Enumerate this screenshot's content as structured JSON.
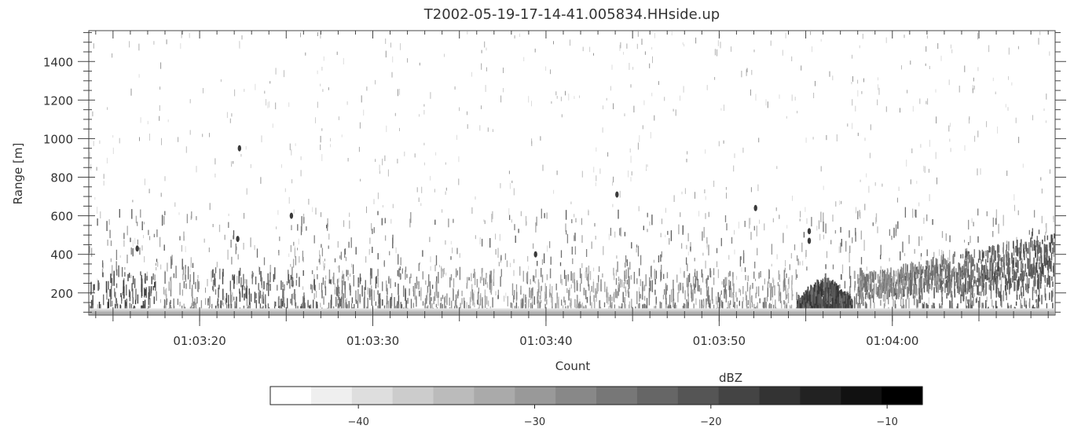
{
  "chart_data": {
    "type": "heatmap",
    "title": "T2002-05-19-17-14-41.005834.HHside.up",
    "xlabel": "Count",
    "ylabel": "Range [m]",
    "x_ticks": [
      "01:03:20",
      "01:03:30",
      "01:03:40",
      "01:03:50",
      "01:04:00"
    ],
    "x_tick_seconds": [
      20,
      30,
      40,
      50,
      60
    ],
    "xlim_seconds": [
      13.6,
      69.4
    ],
    "y_ticks": [
      200,
      400,
      600,
      800,
      1000,
      1200,
      1400
    ],
    "ylim": [
      85,
      1560
    ],
    "colorbar": {
      "label": "dBZ",
      "range": [
        -45,
        -8
      ],
      "ticks": [
        -40,
        -30,
        -20,
        -10
      ],
      "colors": [
        "#ffffff",
        "#efefef",
        "#dedede",
        "#cccccc",
        "#bbbbbb",
        "#aaaaaa",
        "#999999",
        "#888888",
        "#777777",
        "#666666",
        "#555555",
        "#444444",
        "#333333",
        "#222222",
        "#111111",
        "#000000"
      ]
    },
    "grid": false,
    "features": [
      {
        "name": "ground clutter band",
        "range_m": [
          85,
          120
        ]
      },
      {
        "name": "dense low-level echo",
        "time_s": [
          54.5,
          57.5
        ],
        "range_m": [
          90,
          270
        ]
      },
      {
        "name": "elevated echo layer",
        "time_s": [
          60,
          69.4
        ],
        "range_m": [
          200,
          500
        ]
      }
    ]
  }
}
